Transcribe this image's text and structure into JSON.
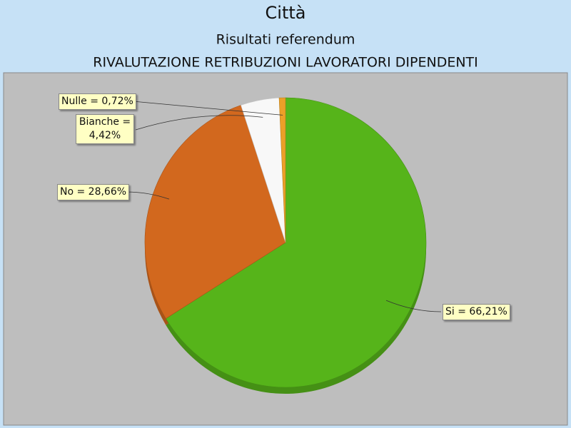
{
  "chart_data": {
    "type": "pie",
    "title": "Città",
    "subtitle": "Risultati referendum",
    "subtitle_2": "RIVALUTAZIONE RETRIBUZIONI LAVORATORI DIPENDENTI",
    "values": [
      66.21,
      28.66,
      4.42,
      0.72
    ],
    "value_labels": [
      "Si = 66,21%",
      "No = 28,66%",
      "Bianche = 4,42%",
      "Nulle = 0,72%"
    ],
    "colors": [
      "#56b41a",
      "#d2681e",
      "#f8f8f8",
      "#eba028"
    ]
  }
}
